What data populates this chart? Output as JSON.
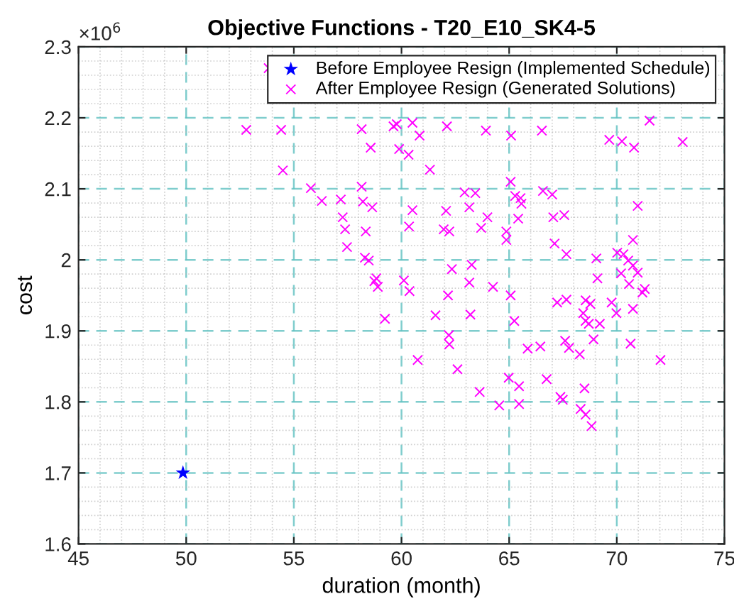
{
  "chart_data": {
    "type": "scatter",
    "title": "Objective Functions - T20_E10_SK4-5",
    "xlabel": "duration (month)",
    "ylabel": "cost",
    "annotations": [
      "×10$^{6}$"
    ],
    "xlim": [
      45,
      75
    ],
    "xticks": [
      45,
      50,
      55,
      60,
      65,
      70,
      75
    ],
    "ylim": [
      1.6,
      2.3
    ],
    "yticks": [
      1.6,
      1.7,
      1.8,
      1.9,
      2,
      2.1,
      2.2,
      2.3
    ],
    "grid": true,
    "legend": "top right",
    "series": [
      {
        "name": "Before Employee Resign (Implemented Schedule)",
        "color": "#0000ff",
        "marker": "star",
        "x": [
          49.85
        ],
        "values": [
          1.7
        ]
      },
      {
        "name": "After Employee Resign (Generated Solutions)",
        "color": "#ff00ff",
        "marker": "cross",
        "x": [
          52.79,
          54.41,
          53.83,
          58.15,
          59.63,
          59.78,
          60.51,
          60.84,
          62.11,
          58.57,
          59.89,
          60.33,
          54.49,
          61.32,
          55.79,
          58.15,
          56.3,
          57.18,
          58.21,
          58.64,
          57.27,
          60.51,
          62.07,
          57.38,
          58.34,
          60.35,
          61.96,
          62.22,
          57.47,
          58.3,
          58.48,
          62.34,
          58.83,
          58.74,
          60.11,
          58.9,
          60.37,
          62.16,
          59.23,
          61.58,
          62.2,
          62.22,
          60.75,
          62.6,
          63.92,
          65.09,
          66.52,
          69.65,
          70.24,
          70.8,
          73.06,
          71.52,
          65.07,
          62.93,
          63.43,
          66.57,
          67.0,
          65.28,
          65.53,
          65.57,
          63.15,
          70.97,
          63.99,
          65.42,
          67.05,
          67.56,
          63.7,
          64.87,
          64.87,
          67.11,
          67.66,
          70.75,
          69.05,
          70.02,
          70.31,
          70.53,
          70.75,
          63.26,
          70.2,
          70.97,
          69.1,
          63.15,
          64.25,
          70.57,
          71.3,
          71.19,
          65.07,
          63.2,
          65.24,
          67.23,
          67.66,
          68.55,
          68.77,
          69.76,
          69.98,
          70.75,
          68.44,
          68.55,
          68.7,
          69.21,
          65.86,
          66.45,
          67.6,
          67.78,
          68.28,
          68.92,
          70.64,
          72.03,
          64.98,
          65.46,
          66.74,
          68.5,
          63.63,
          64.54,
          65.46,
          67.38,
          67.49,
          68.32,
          68.55,
          68.83
        ],
        "values": [
          2.183,
          2.183,
          2.27,
          2.184,
          2.188,
          2.191,
          2.193,
          2.175,
          2.188,
          2.158,
          2.156,
          2.148,
          2.126,
          2.127,
          2.101,
          2.103,
          2.083,
          2.085,
          2.082,
          2.074,
          2.06,
          2.07,
          2.069,
          2.043,
          2.04,
          2.047,
          2.043,
          2.04,
          2.018,
          2.003,
          1.999,
          1.987,
          1.974,
          1.97,
          1.971,
          1.962,
          1.956,
          1.95,
          1.917,
          1.922,
          1.894,
          1.881,
          1.859,
          1.846,
          2.182,
          2.175,
          2.182,
          2.169,
          2.167,
          2.158,
          2.166,
          2.196,
          2.11,
          2.095,
          2.094,
          2.097,
          2.092,
          2.09,
          2.087,
          2.079,
          2.074,
          2.076,
          2.06,
          2.058,
          2.06,
          2.063,
          2.045,
          2.04,
          2.028,
          2.023,
          2.008,
          2.028,
          2.002,
          2.01,
          2.008,
          1.999,
          1.992,
          1.993,
          1.981,
          1.982,
          1.974,
          1.968,
          1.962,
          1.966,
          1.959,
          1.954,
          1.95,
          1.923,
          1.914,
          1.94,
          1.944,
          1.943,
          1.938,
          1.94,
          1.925,
          1.931,
          1.925,
          1.914,
          1.91,
          1.91,
          1.875,
          1.878,
          1.886,
          1.876,
          1.867,
          1.888,
          1.882,
          1.859,
          1.834,
          1.822,
          1.832,
          1.819,
          1.814,
          1.795,
          1.797,
          1.807,
          1.803,
          1.79,
          1.782,
          1.766
        ]
      }
    ]
  }
}
